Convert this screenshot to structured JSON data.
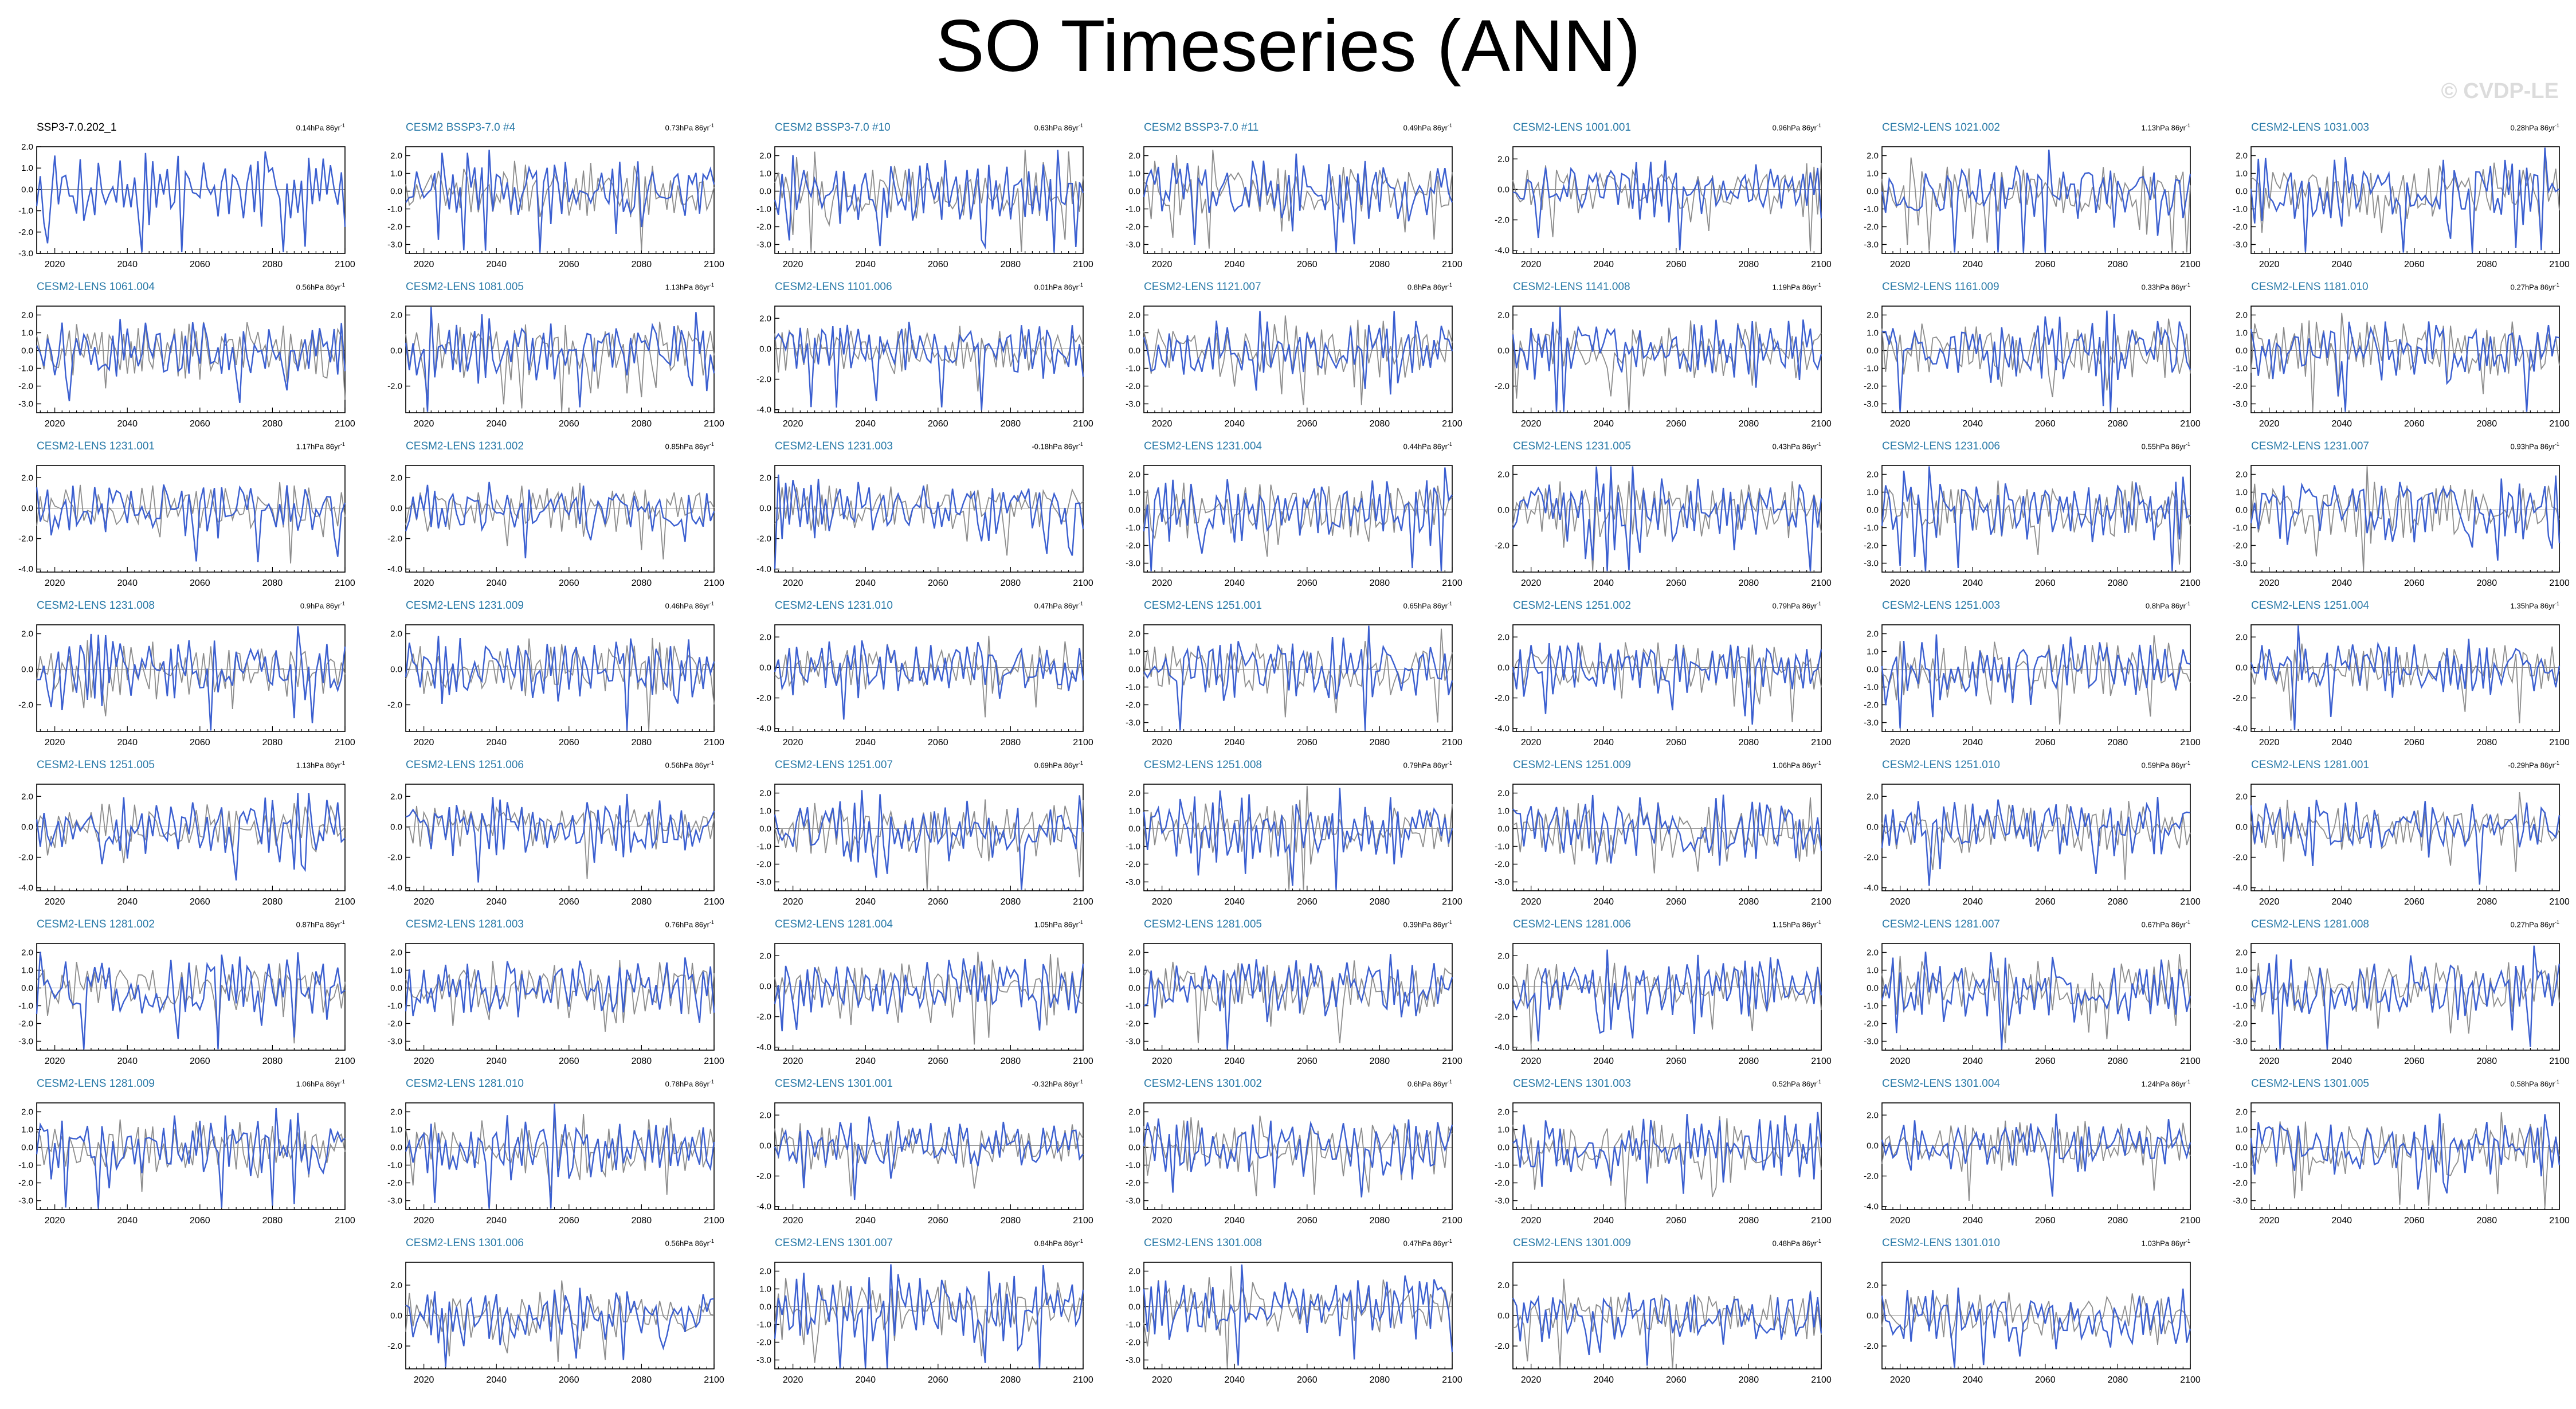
{
  "title": "SO Timeseries (ANN)",
  "watermark": "© CVDP-LE",
  "chart_data": {
    "type": "line",
    "xlim": [
      2015,
      2100
    ],
    "xticks": [
      2020,
      2040,
      2060,
      2080,
      2100
    ],
    "series_colors": {
      "member": "#3b5fd0",
      "reference": "#8c8c8c",
      "zero_line": "#000000"
    },
    "panels": [
      {
        "title": "SSP3-7.0.202_1",
        "trend": "0.14hPa 86yr",
        "yticks": [
          "2.0",
          "1.0",
          "0.0",
          "-1.0",
          "-2.0",
          "-3.0"
        ],
        "ylim": [
          -3,
          2
        ],
        "observed": true
      },
      {
        "title": "CESM2 BSSP3-7.0 #4",
        "trend": "0.73hPa 86yr",
        "yticks": [
          "2.0",
          "1.0",
          "0.0",
          "-1.0",
          "-2.0",
          "-3.0"
        ],
        "ylim": [
          -3.5,
          2.5
        ]
      },
      {
        "title": "CESM2 BSSP3-7.0 #10",
        "trend": "0.63hPa 86yr",
        "yticks": [
          "2.0",
          "1.0",
          "0.0",
          "-1.0",
          "-2.0",
          "-3.0"
        ],
        "ylim": [
          -3.5,
          2.5
        ]
      },
      {
        "title": "CESM2 BSSP3-7.0 #11",
        "trend": "0.49hPa 86yr",
        "yticks": [
          "2.0",
          "1.0",
          "0.0",
          "-1.0",
          "-2.0",
          "-3.0"
        ],
        "ylim": [
          -3.5,
          2.5
        ]
      },
      {
        "title": "CESM2-LENS 1001.001",
        "trend": "0.96hPa 86yr",
        "yticks": [
          "2.0",
          "0.0",
          "-2.0",
          "-4.0"
        ],
        "ylim": [
          -4.2,
          2.8
        ]
      },
      {
        "title": "CESM2-LENS 1021.002",
        "trend": "1.13hPa 86yr",
        "yticks": [
          "2.0",
          "1.0",
          "0.0",
          "-1.0",
          "-2.0",
          "-3.0"
        ],
        "ylim": [
          -3.5,
          2.5
        ]
      },
      {
        "title": "CESM2-LENS 1031.003",
        "trend": "0.28hPa 86yr",
        "yticks": [
          "2.0",
          "1.0",
          "0.0",
          "-1.0",
          "-2.0",
          "-3.0"
        ],
        "ylim": [
          -3.5,
          2.5
        ]
      },
      {
        "title": "CESM2-LENS 1061.004",
        "trend": "0.56hPa 86yr",
        "yticks": [
          "2.0",
          "1.0",
          "0.0",
          "-1.0",
          "-2.0",
          "-3.0"
        ],
        "ylim": [
          -3.5,
          2.5
        ]
      },
      {
        "title": "CESM2-LENS 1081.005",
        "trend": "1.13hPa 86yr",
        "yticks": [
          "2.0",
          "0.0",
          "-2.0"
        ],
        "ylim": [
          -3.5,
          2.5
        ]
      },
      {
        "title": "CESM2-LENS 1101.006",
        "trend": "0.01hPa 86yr",
        "yticks": [
          "2.0",
          "0.0",
          "-2.0",
          "-4.0"
        ],
        "ylim": [
          -4.2,
          2.8
        ]
      },
      {
        "title": "CESM2-LENS 1121.007",
        "trend": "0.8hPa 86yr",
        "yticks": [
          "2.0",
          "1.0",
          "0.0",
          "-1.0",
          "-2.0",
          "-3.0"
        ],
        "ylim": [
          -3.5,
          2.5
        ]
      },
      {
        "title": "CESM2-LENS 1141.008",
        "trend": "1.19hPa 86yr",
        "yticks": [
          "2.0",
          "0.0",
          "-2.0"
        ],
        "ylim": [
          -3.5,
          2.5
        ]
      },
      {
        "title": "CESM2-LENS 1161.009",
        "trend": "0.33hPa 86yr",
        "yticks": [
          "2.0",
          "1.0",
          "0.0",
          "-1.0",
          "-2.0",
          "-3.0"
        ],
        "ylim": [
          -3.5,
          2.5
        ]
      },
      {
        "title": "CESM2-LENS 1181.010",
        "trend": "0.27hPa 86yr",
        "yticks": [
          "2.0",
          "1.0",
          "0.0",
          "-1.0",
          "-2.0",
          "-3.0"
        ],
        "ylim": [
          -3.5,
          2.5
        ]
      },
      {
        "title": "CESM2-LENS 1231.001",
        "trend": "1.17hPa 86yr",
        "yticks": [
          "2.0",
          "0.0",
          "-2.0",
          "-4.0"
        ],
        "ylim": [
          -4.2,
          2.8
        ]
      },
      {
        "title": "CESM2-LENS 1231.002",
        "trend": "0.85hPa 86yr",
        "yticks": [
          "2.0",
          "0.0",
          "-2.0",
          "-4.0"
        ],
        "ylim": [
          -4.2,
          2.8
        ]
      },
      {
        "title": "CESM2-LENS 1231.003",
        "trend": "-0.18hPa 86yr",
        "yticks": [
          "2.0",
          "0.0",
          "-2.0",
          "-4.0"
        ],
        "ylim": [
          -4.2,
          2.8
        ]
      },
      {
        "title": "CESM2-LENS 1231.004",
        "trend": "0.44hPa 86yr",
        "yticks": [
          "2.0",
          "1.0",
          "0.0",
          "-1.0",
          "-2.0",
          "-3.0"
        ],
        "ylim": [
          -3.5,
          2.5
        ]
      },
      {
        "title": "CESM2-LENS 1231.005",
        "trend": "0.43hPa 86yr",
        "yticks": [
          "2.0",
          "0.0",
          "-2.0"
        ],
        "ylim": [
          -3.5,
          2.5
        ]
      },
      {
        "title": "CESM2-LENS 1231.006",
        "trend": "0.55hPa 86yr",
        "yticks": [
          "2.0",
          "1.0",
          "0.0",
          "-1.0",
          "-2.0",
          "-3.0"
        ],
        "ylim": [
          -3.5,
          2.5
        ]
      },
      {
        "title": "CESM2-LENS 1231.007",
        "trend": "0.93hPa 86yr",
        "yticks": [
          "2.0",
          "1.0",
          "0.0",
          "-1.0",
          "-2.0",
          "-3.0"
        ],
        "ylim": [
          -3.5,
          2.5
        ]
      },
      {
        "title": "CESM2-LENS 1231.008",
        "trend": "0.9hPa 86yr",
        "yticks": [
          "2.0",
          "0.0",
          "-2.0"
        ],
        "ylim": [
          -3.5,
          2.5
        ]
      },
      {
        "title": "CESM2-LENS 1231.009",
        "trend": "0.46hPa 86yr",
        "yticks": [
          "2.0",
          "0.0",
          "-2.0"
        ],
        "ylim": [
          -3.5,
          2.5
        ]
      },
      {
        "title": "CESM2-LENS 1231.010",
        "trend": "0.47hPa 86yr",
        "yticks": [
          "2.0",
          "0.0",
          "-2.0",
          "-4.0"
        ],
        "ylim": [
          -4.2,
          2.8
        ]
      },
      {
        "title": "CESM2-LENS 1251.001",
        "trend": "0.65hPa 86yr",
        "yticks": [
          "2.0",
          "1.0",
          "0.0",
          "-1.0",
          "-2.0",
          "-3.0"
        ],
        "ylim": [
          -3.5,
          2.5
        ]
      },
      {
        "title": "CESM2-LENS 1251.002",
        "trend": "0.79hPa 86yr",
        "yticks": [
          "2.0",
          "0.0",
          "-2.0",
          "-4.0"
        ],
        "ylim": [
          -4.2,
          2.8
        ]
      },
      {
        "title": "CESM2-LENS 1251.003",
        "trend": "0.8hPa 86yr",
        "yticks": [
          "2.0",
          "1.0",
          "0.0",
          "-1.0",
          "-2.0",
          "-3.0"
        ],
        "ylim": [
          -3.5,
          2.5
        ]
      },
      {
        "title": "CESM2-LENS 1251.004",
        "trend": "1.35hPa 86yr",
        "yticks": [
          "2.0",
          "0.0",
          "-2.0",
          "-4.0"
        ],
        "ylim": [
          -4.2,
          2.8
        ]
      },
      {
        "title": "CESM2-LENS 1251.005",
        "trend": "1.13hPa 86yr",
        "yticks": [
          "2.0",
          "0.0",
          "-2.0",
          "-4.0"
        ],
        "ylim": [
          -4.2,
          2.8
        ]
      },
      {
        "title": "CESM2-LENS 1251.006",
        "trend": "0.56hPa 86yr",
        "yticks": [
          "2.0",
          "0.0",
          "-2.0",
          "-4.0"
        ],
        "ylim": [
          -4.2,
          2.8
        ]
      },
      {
        "title": "CESM2-LENS 1251.007",
        "trend": "0.69hPa 86yr",
        "yticks": [
          "2.0",
          "1.0",
          "0.0",
          "-1.0",
          "-2.0",
          "-3.0"
        ],
        "ylim": [
          -3.5,
          2.5
        ]
      },
      {
        "title": "CESM2-LENS 1251.008",
        "trend": "0.79hPa 86yr",
        "yticks": [
          "2.0",
          "1.0",
          "0.0",
          "-1.0",
          "-2.0",
          "-3.0"
        ],
        "ylim": [
          -3.5,
          2.5
        ]
      },
      {
        "title": "CESM2-LENS 1251.009",
        "trend": "1.06hPa 86yr",
        "yticks": [
          "2.0",
          "1.0",
          "0.0",
          "-1.0",
          "-2.0",
          "-3.0"
        ],
        "ylim": [
          -3.5,
          2.5
        ]
      },
      {
        "title": "CESM2-LENS 1251.010",
        "trend": "0.59hPa 86yr",
        "yticks": [
          "2.0",
          "0.0",
          "-2.0",
          "-4.0"
        ],
        "ylim": [
          -4.2,
          2.8
        ]
      },
      {
        "title": "CESM2-LENS 1281.001",
        "trend": "-0.29hPa 86yr",
        "yticks": [
          "2.0",
          "0.0",
          "-2.0",
          "-4.0"
        ],
        "ylim": [
          -4.2,
          2.8
        ]
      },
      {
        "title": "CESM2-LENS 1281.002",
        "trend": "0.87hPa 86yr",
        "yticks": [
          "2.0",
          "1.0",
          "0.0",
          "-1.0",
          "-2.0",
          "-3.0"
        ],
        "ylim": [
          -3.5,
          2.5
        ]
      },
      {
        "title": "CESM2-LENS 1281.003",
        "trend": "0.76hPa 86yr",
        "yticks": [
          "2.0",
          "1.0",
          "0.0",
          "-1.0",
          "-2.0",
          "-3.0"
        ],
        "ylim": [
          -3.5,
          2.5
        ]
      },
      {
        "title": "CESM2-LENS 1281.004",
        "trend": "1.05hPa 86yr",
        "yticks": [
          "2.0",
          "0.0",
          "-2.0",
          "-4.0"
        ],
        "ylim": [
          -4.2,
          2.8
        ]
      },
      {
        "title": "CESM2-LENS 1281.005",
        "trend": "0.39hPa 86yr",
        "yticks": [
          "2.0",
          "1.0",
          "0.0",
          "-1.0",
          "-2.0",
          "-3.0"
        ],
        "ylim": [
          -3.5,
          2.5
        ]
      },
      {
        "title": "CESM2-LENS 1281.006",
        "trend": "1.15hPa 86yr",
        "yticks": [
          "2.0",
          "0.0",
          "-2.0",
          "-4.0"
        ],
        "ylim": [
          -4.2,
          2.8
        ]
      },
      {
        "title": "CESM2-LENS 1281.007",
        "trend": "0.67hPa 86yr",
        "yticks": [
          "2.0",
          "1.0",
          "0.0",
          "-1.0",
          "-2.0",
          "-3.0"
        ],
        "ylim": [
          -3.5,
          2.5
        ]
      },
      {
        "title": "CESM2-LENS 1281.008",
        "trend": "0.27hPa 86yr",
        "yticks": [
          "2.0",
          "1.0",
          "0.0",
          "-1.0",
          "-2.0",
          "-3.0"
        ],
        "ylim": [
          -3.5,
          2.5
        ]
      },
      {
        "title": "CESM2-LENS 1281.009",
        "trend": "1.06hPa 86yr",
        "yticks": [
          "2.0",
          "1.0",
          "0.0",
          "-1.0",
          "-2.0",
          "-3.0"
        ],
        "ylim": [
          -3.5,
          2.5
        ]
      },
      {
        "title": "CESM2-LENS 1281.010",
        "trend": "0.78hPa 86yr",
        "yticks": [
          "2.0",
          "1.0",
          "0.0",
          "-1.0",
          "-2.0",
          "-3.0"
        ],
        "ylim": [
          -3.5,
          2.5
        ]
      },
      {
        "title": "CESM2-LENS 1301.001",
        "trend": "-0.32hPa 86yr",
        "yticks": [
          "2.0",
          "0.0",
          "-2.0",
          "-4.0"
        ],
        "ylim": [
          -4.2,
          2.8
        ]
      },
      {
        "title": "CESM2-LENS 1301.002",
        "trend": "0.6hPa 86yr",
        "yticks": [
          "2.0",
          "1.0",
          "0.0",
          "-1.0",
          "-2.0",
          "-3.0"
        ],
        "ylim": [
          -3.5,
          2.5
        ]
      },
      {
        "title": "CESM2-LENS 1301.003",
        "trend": "0.52hPa 86yr",
        "yticks": [
          "2.0",
          "1.0",
          "0.0",
          "-1.0",
          "-2.0",
          "-3.0"
        ],
        "ylim": [
          -3.5,
          2.5
        ]
      },
      {
        "title": "CESM2-LENS 1301.004",
        "trend": "1.24hPa 86yr",
        "yticks": [
          "2.0",
          "0.0",
          "-2.0",
          "-4.0"
        ],
        "ylim": [
          -4.2,
          2.8
        ]
      },
      {
        "title": "CESM2-LENS 1301.005",
        "trend": "0.58hPa 86yr",
        "yticks": [
          "2.0",
          "1.0",
          "0.0",
          "-1.0",
          "-2.0",
          "-3.0"
        ],
        "ylim": [
          -3.5,
          2.5
        ]
      },
      {
        "title": "CESM2-LENS 1301.006",
        "trend": "0.56hPa 86yr",
        "yticks": [
          "2.0",
          "0.0",
          "-2.0"
        ],
        "ylim": [
          -3.5,
          3.5
        ]
      },
      {
        "title": "CESM2-LENS 1301.007",
        "trend": "0.84hPa 86yr",
        "yticks": [
          "2.0",
          "1.0",
          "0.0",
          "-1.0",
          "-2.0",
          "-3.0"
        ],
        "ylim": [
          -3.5,
          2.5
        ]
      },
      {
        "title": "CESM2-LENS 1301.008",
        "trend": "0.47hPa 86yr",
        "yticks": [
          "2.0",
          "1.0",
          "0.0",
          "-1.0",
          "-2.0",
          "-3.0"
        ],
        "ylim": [
          -3.5,
          2.5
        ]
      },
      {
        "title": "CESM2-LENS 1301.009",
        "trend": "0.48hPa 86yr",
        "yticks": [
          "2.0",
          "0.0",
          "-2.0"
        ],
        "ylim": [
          -3.5,
          3.5
        ]
      },
      {
        "title": "CESM2-LENS 1301.010",
        "trend": "1.03hPa 86yr",
        "yticks": [
          "2.0",
          "0.0",
          "-2.0"
        ],
        "ylim": [
          -3.5,
          3.5
        ]
      }
    ]
  }
}
